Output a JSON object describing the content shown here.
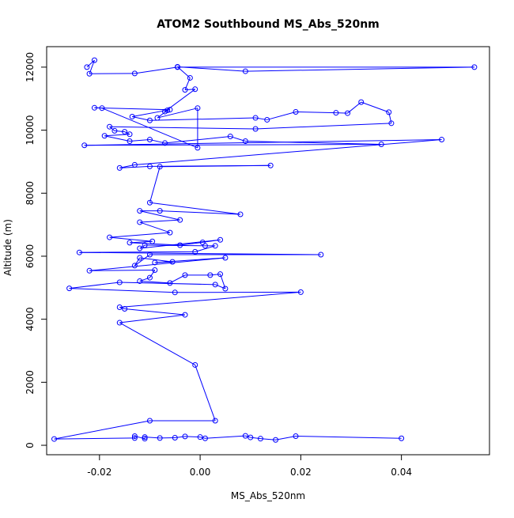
{
  "chart_data": {
    "type": "scatter",
    "title": "ATOM2 Southbound MS_Abs_520nm",
    "xlabel": "MS_Abs_520nm",
    "ylabel": "Altitude (m)",
    "xlim": [
      -0.0305,
      0.0575
    ],
    "ylim": [
      -300,
      12650
    ],
    "xticks": [
      -0.02,
      0.0,
      0.02,
      0.04
    ],
    "xtick_labels": [
      "-0.02",
      "0.00",
      "0.02",
      "0.04"
    ],
    "yticks": [
      0,
      2000,
      4000,
      6000,
      8000,
      10000,
      12000
    ],
    "ytick_labels": [
      "0",
      "2000",
      "4000",
      "6000",
      "8000",
      "10000",
      "12000"
    ],
    "connected": true,
    "grid": false,
    "color": "#0000ff",
    "points": [
      [
        -0.0225,
        12000
      ],
      [
        -0.021,
        12220
      ],
      [
        -0.022,
        11790
      ],
      [
        -0.013,
        11800
      ],
      [
        -0.0045,
        12000
      ],
      [
        0.0545,
        12000
      ],
      [
        0.009,
        11870
      ],
      [
        -0.0045,
        12010
      ],
      [
        -0.002,
        11660
      ],
      [
        -0.003,
        11280
      ],
      [
        -0.001,
        11300
      ],
      [
        -0.007,
        10590
      ],
      [
        -0.0065,
        10630
      ],
      [
        -0.0085,
        10390
      ],
      [
        -0.0005,
        10700
      ],
      [
        -0.0005,
        9440
      ],
      [
        -0.0195,
        10700
      ],
      [
        -0.021,
        10710
      ],
      [
        -0.006,
        10650
      ],
      [
        -0.0135,
        10430
      ],
      [
        -0.01,
        10310
      ],
      [
        0.011,
        10390
      ],
      [
        0.0133,
        10330
      ],
      [
        0.019,
        10580
      ],
      [
        0.027,
        10550
      ],
      [
        0.0293,
        10540
      ],
      [
        0.032,
        10890
      ],
      [
        0.0375,
        10570
      ],
      [
        0.038,
        10220
      ],
      [
        0.011,
        10040
      ],
      [
        -0.018,
        10110
      ],
      [
        -0.017,
        9980
      ],
      [
        -0.015,
        9950
      ],
      [
        -0.014,
        9870
      ],
      [
        -0.019,
        9820
      ],
      [
        -0.014,
        9650
      ],
      [
        -0.01,
        9700
      ],
      [
        -0.007,
        9590
      ],
      [
        0.006,
        9800
      ],
      [
        0.009,
        9650
      ],
      [
        0.036,
        9550
      ],
      [
        -0.023,
        9520
      ],
      [
        0.048,
        9700
      ],
      [
        -0.013,
        8900
      ],
      [
        -0.016,
        8800
      ],
      [
        -0.01,
        8850
      ],
      [
        0.014,
        8880
      ],
      [
        -0.008,
        8840
      ],
      [
        -0.01,
        7700
      ],
      [
        0.008,
        7330
      ],
      [
        -0.008,
        7440
      ],
      [
        -0.012,
        7440
      ],
      [
        -0.004,
        7150
      ],
      [
        -0.012,
        7080
      ],
      [
        -0.006,
        6750
      ],
      [
        -0.018,
        6600
      ],
      [
        -0.0095,
        6470
      ],
      [
        -0.014,
        6430
      ],
      [
        -0.004,
        6350
      ],
      [
        0.0005,
        6440
      ],
      [
        0.004,
        6520
      ],
      [
        -0.012,
        6250
      ],
      [
        -0.011,
        6350
      ],
      [
        0.001,
        6330
      ],
      [
        0.003,
        6330
      ],
      [
        -0.001,
        6140
      ],
      [
        -0.024,
        6120
      ],
      [
        0.024,
        6050
      ],
      [
        -0.01,
        6050
      ],
      [
        -0.013,
        5700
      ],
      [
        -0.012,
        5950
      ],
      [
        -0.0055,
        5820
      ],
      [
        -0.009,
        5800
      ],
      [
        0.005,
        5950
      ],
      [
        -0.022,
        5540
      ],
      [
        -0.009,
        5560
      ],
      [
        -0.01,
        5320
      ],
      [
        -0.012,
        5210
      ],
      [
        -0.006,
        5150
      ],
      [
        -0.003,
        5400
      ],
      [
        0.002,
        5400
      ],
      [
        0.004,
        5430
      ],
      [
        0.005,
        4970
      ],
      [
        0.003,
        5100
      ],
      [
        -0.016,
        5170
      ],
      [
        -0.026,
        4980
      ],
      [
        -0.005,
        4850
      ],
      [
        0.02,
        4860
      ],
      [
        -0.016,
        4380
      ],
      [
        -0.015,
        4330
      ],
      [
        -0.003,
        4140
      ],
      [
        -0.016,
        3890
      ],
      [
        -0.001,
        2550
      ],
      [
        0.003,
        780
      ],
      [
        -0.01,
        780
      ],
      [
        -0.029,
        200
      ],
      [
        -0.013,
        230
      ],
      [
        -0.013,
        290
      ],
      [
        -0.011,
        210
      ],
      [
        -0.011,
        260
      ],
      [
        -0.008,
        230
      ],
      [
        -0.005,
        240
      ],
      [
        -0.003,
        280
      ],
      [
        0.0,
        260
      ],
      [
        0.001,
        220
      ],
      [
        0.009,
        300
      ],
      [
        0.01,
        250
      ],
      [
        0.012,
        210
      ],
      [
        0.015,
        170
      ],
      [
        0.019,
        290
      ],
      [
        0.04,
        220
      ]
    ]
  }
}
